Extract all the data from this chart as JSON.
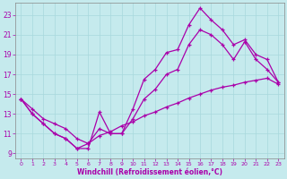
{
  "xlabel": "Windchill (Refroidissement éolien,°C)",
  "background_color": "#c5eaed",
  "grid_color": "#a8d8dc",
  "line_color": "#aa00aa",
  "xlim": [
    -0.5,
    23.5
  ],
  "ylim": [
    8.5,
    24.2
  ],
  "xticks": [
    0,
    1,
    2,
    3,
    4,
    5,
    6,
    7,
    8,
    9,
    10,
    11,
    12,
    13,
    14,
    15,
    16,
    17,
    18,
    19,
    20,
    21,
    22,
    23
  ],
  "yticks": [
    9,
    11,
    13,
    15,
    17,
    19,
    21,
    23
  ],
  "line1_x": [
    0,
    1,
    2,
    3,
    4,
    5,
    6,
    7,
    8,
    9,
    10,
    11,
    12,
    13,
    14,
    15,
    16,
    17,
    18,
    19,
    20,
    21,
    22,
    23
  ],
  "line1_y": [
    14.5,
    13.0,
    12.0,
    11.0,
    10.5,
    9.5,
    9.5,
    13.2,
    11.0,
    11.0,
    13.5,
    16.5,
    17.5,
    19.2,
    19.5,
    22.0,
    23.7,
    22.5,
    21.5,
    20.0,
    20.5,
    19.0,
    18.5,
    16.2
  ],
  "line2_x": [
    0,
    1,
    2,
    3,
    4,
    5,
    6,
    7,
    8,
    9,
    10,
    11,
    12,
    13,
    14,
    15,
    16,
    17,
    18,
    19,
    20,
    21,
    22,
    23
  ],
  "line2_y": [
    14.5,
    13.0,
    12.0,
    11.0,
    10.5,
    9.5,
    10.0,
    11.5,
    11.0,
    11.0,
    12.5,
    14.5,
    15.5,
    17.0,
    17.5,
    20.0,
    21.5,
    21.0,
    20.0,
    18.5,
    20.3,
    18.5,
    17.5,
    16.2
  ],
  "line3_x": [
    0,
    1,
    2,
    3,
    4,
    5,
    6,
    7,
    8,
    9,
    10,
    11,
    12,
    13,
    14,
    15,
    16,
    17,
    18,
    19,
    20,
    21,
    22,
    23
  ],
  "line3_y": [
    14.5,
    13.5,
    12.5,
    12.0,
    11.5,
    10.5,
    10.0,
    10.8,
    11.2,
    11.8,
    12.2,
    12.8,
    13.2,
    13.7,
    14.1,
    14.6,
    15.0,
    15.4,
    15.7,
    15.9,
    16.2,
    16.4,
    16.6,
    16.0
  ]
}
